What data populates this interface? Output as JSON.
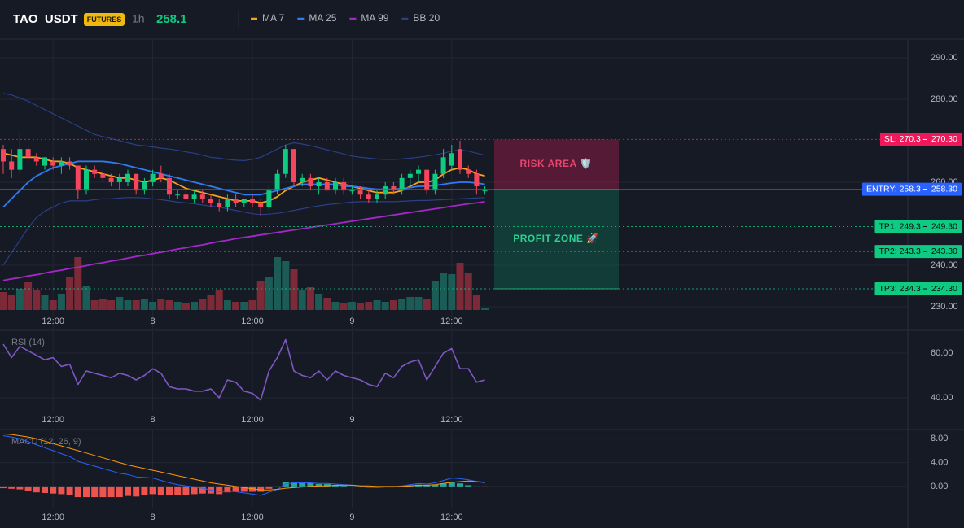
{
  "chart_data": [
    {
      "type": "candlestick",
      "title": "TAO_USDT",
      "market": "FUTURES",
      "interval": "1h",
      "last_price": 258.1,
      "categories": [
        null,
        null,
        null,
        null,
        null,
        null,
        "12:00",
        null,
        null,
        null,
        null,
        null,
        null,
        null,
        null,
        null,
        null,
        null,
        "8",
        null,
        null,
        null,
        null,
        null,
        null,
        null,
        null,
        null,
        null,
        null,
        "12:00",
        null,
        null,
        null,
        null,
        null,
        null,
        null,
        null,
        null,
        null,
        null,
        "9",
        null,
        null,
        null,
        null,
        null,
        null,
        null,
        null,
        null,
        null,
        null,
        "12:00",
        null,
        null,
        null,
        null
      ],
      "open": [
        268,
        265,
        263,
        268,
        266,
        264,
        265,
        264,
        265,
        264,
        258,
        263,
        262,
        261,
        260,
        260,
        262,
        258,
        260,
        262,
        261,
        257,
        257,
        256,
        257,
        256,
        255,
        254,
        256,
        255,
        256,
        255,
        254,
        258,
        262,
        268,
        260,
        261,
        259,
        260,
        258,
        260,
        258,
        258,
        257,
        256,
        257,
        259,
        258,
        261,
        262,
        263,
        258,
        262,
        264,
        268,
        263,
        262,
        258
      ],
      "high": [
        269,
        268,
        272,
        269,
        267,
        266,
        266,
        266,
        266,
        264,
        264,
        264,
        263,
        262,
        262,
        263,
        262,
        261,
        263,
        264,
        262,
        258,
        258,
        258,
        258,
        257,
        256,
        257,
        257,
        256,
        257,
        256,
        259,
        263,
        269,
        268,
        262,
        262,
        261,
        261,
        261,
        261,
        259,
        259,
        258,
        258,
        260,
        260,
        262,
        263,
        264,
        263,
        263,
        268,
        269,
        270,
        264,
        263,
        259
      ],
      "low": [
        262,
        261,
        262,
        265,
        264,
        263,
        263,
        262,
        263,
        256,
        257,
        261,
        260,
        259,
        258,
        259,
        257,
        257,
        259,
        260,
        256,
        256,
        256,
        255,
        255,
        254,
        253,
        253,
        254,
        254,
        254,
        252,
        253,
        257,
        261,
        259,
        259,
        258,
        257,
        258,
        257,
        257,
        257,
        256,
        255,
        255,
        256,
        257,
        257,
        259,
        260,
        257,
        257,
        261,
        263,
        262,
        261,
        257,
        257
      ],
      "close": [
        265,
        263,
        268,
        266,
        265,
        266,
        264,
        265,
        264,
        258,
        263,
        262,
        261,
        260,
        261,
        262,
        258,
        260,
        262,
        261,
        257,
        257,
        256,
        257,
        256,
        255,
        254,
        256,
        255,
        256,
        255,
        254,
        258,
        262,
        268,
        260,
        261,
        259,
        260,
        258,
        260,
        258,
        258,
        257,
        256,
        257,
        259,
        258,
        261,
        262,
        263,
        258,
        262,
        266,
        267,
        263,
        262,
        259,
        258
      ],
      "volume": [
        22,
        18,
        26,
        34,
        24,
        18,
        12,
        20,
        40,
        65,
        30,
        12,
        14,
        12,
        16,
        12,
        12,
        14,
        10,
        14,
        12,
        10,
        8,
        10,
        14,
        18,
        24,
        12,
        10,
        10,
        12,
        35,
        40,
        65,
        60,
        50,
        25,
        28,
        20,
        15,
        10,
        8,
        10,
        8,
        10,
        12,
        10,
        12,
        14,
        16,
        16,
        14,
        36,
        45,
        44,
        58,
        45,
        18,
        3
      ],
      "up_color": "#0ecb81",
      "down_color": "#f6465d",
      "volume_up_color": "#1c5c56",
      "volume_down_color": "#7c2a38",
      "series": [
        {
          "name": "MA 7",
          "color": "#f7a21b",
          "values": [
            267,
            266.5,
            266,
            266,
            266,
            265.5,
            265,
            265,
            264.5,
            263.5,
            263,
            262.5,
            262,
            261.5,
            261,
            261,
            260.5,
            260,
            260.5,
            261,
            260.5,
            259.5,
            258.5,
            258,
            257.5,
            257,
            256.5,
            256,
            255.5,
            255.5,
            255.5,
            255,
            255.5,
            256.5,
            258,
            259,
            260,
            260.5,
            261,
            260.5,
            260,
            259.5,
            259,
            258.5,
            258,
            257.5,
            257.5,
            257.5,
            258,
            259,
            260,
            260,
            260.5,
            262,
            263,
            263.5,
            263,
            262,
            261.5
          ]
        },
        {
          "name": "MA 25",
          "color": "#2f7bf5",
          "values": [
            254,
            256,
            258,
            260,
            261.5,
            262.5,
            263.5,
            264,
            264.5,
            265,
            265,
            265,
            265,
            264.8,
            264.5,
            264,
            263.5,
            263,
            262.5,
            262,
            261.5,
            261,
            260.5,
            260,
            259.5,
            259,
            258.5,
            258,
            257.5,
            257,
            257,
            257,
            257.5,
            258,
            258.5,
            259,
            259.5,
            259.5,
            259.5,
            259.5,
            259.5,
            259,
            259,
            258.8,
            258.5,
            258.3,
            258.3,
            258.3,
            258.5,
            258.7,
            259,
            259,
            259.2,
            259.5,
            259.8,
            260,
            260,
            259.8,
            259.5
          ]
        },
        {
          "name": "MA 99",
          "color": "#a229c5",
          "values": [
            236.3,
            236.7,
            237,
            237.4,
            237.7,
            238.1,
            238.5,
            238.8,
            239.2,
            239.5,
            239.9,
            240.3,
            240.6,
            241,
            241.3,
            241.7,
            242.1,
            242.4,
            242.8,
            243.1,
            243.5,
            243.9,
            244.2,
            244.6,
            244.9,
            245.3,
            245.7,
            246,
            246.4,
            246.7,
            247,
            247.3,
            247.6,
            247.9,
            248.2,
            248.5,
            248.8,
            249.1,
            249.4,
            249.7,
            250,
            250.3,
            250.6,
            250.9,
            251.2,
            251.5,
            251.8,
            252.1,
            252.4,
            252.7,
            253,
            253.3,
            253.6,
            253.9,
            254.2,
            254.5,
            254.8,
            255,
            255.3
          ]
        },
        {
          "name": "BB 20",
          "color": "#2b3f86",
          "upper": [
            281.4,
            281,
            280.3,
            279.5,
            278.5,
            277.5,
            276.5,
            275.5,
            274.5,
            273.5,
            272.5,
            271.5,
            271,
            270.5,
            270,
            269.5,
            269,
            268.8,
            268.5,
            268.2,
            268,
            267.7,
            267.3,
            267,
            266.5,
            266,
            265.8,
            265.5,
            265.3,
            265.2,
            265.5,
            266,
            267,
            268,
            269,
            269.5,
            269.2,
            268.8,
            268.3,
            267.8,
            267.3,
            266.8,
            266.3,
            266,
            265.8,
            265.6,
            265.5,
            265.5,
            265.6,
            265.8,
            266,
            266.3,
            266.6,
            267,
            267.5,
            267.8,
            267.5,
            267,
            266.5
          ],
          "lower": [
            240,
            243,
            246,
            249,
            251.5,
            253,
            254,
            255,
            255.5,
            255.5,
            255.5,
            255.8,
            256,
            256,
            256.2,
            256.3,
            256.3,
            256.2,
            256,
            255.8,
            255.5,
            255.2,
            255,
            254.8,
            254.5,
            254.2,
            254,
            253.6,
            253.2,
            252.8,
            252.4,
            252.2,
            252.3,
            252.5,
            252.8,
            253.2,
            253.6,
            254,
            254.3,
            254.6,
            254.8,
            255,
            255.2,
            255.3,
            255.3,
            255.3,
            255.3,
            255.3,
            255.4,
            255.5,
            255.6,
            255.6,
            255.7,
            255.8,
            255.9,
            256,
            256.1,
            256.2,
            256.3
          ]
        }
      ],
      "levels": [
        {
          "label": "SL: 270.3",
          "value": 270.3,
          "axis_label": "270.30",
          "color": "#f0185a",
          "text_color": "#ffffff",
          "line_style": "dotted"
        },
        {
          "label": "ENTRY: 258.3",
          "value": 258.3,
          "axis_label": "258.30",
          "color": "#2962ff",
          "text_color": "#ffffff",
          "line_style": "solid"
        },
        {
          "label": "TP1: 249.3",
          "value": 249.3,
          "axis_label": "249.30",
          "color": "#0ecb81",
          "text_color": "#0b0e14",
          "line_style": "dotted"
        },
        {
          "label": "TP2: 243.3",
          "value": 243.3,
          "axis_label": "243.30",
          "color": "#0ecb81",
          "text_color": "#0b0e14",
          "line_style": "dotted"
        },
        {
          "label": "TP3: 234.3",
          "value": 234.3,
          "axis_label": "234.30",
          "color": "#0ecb81",
          "text_color": "#0b0e14",
          "line_style": "dotted"
        }
      ],
      "zones": [
        {
          "label": "RISK AREA 🛡️",
          "top": 270.3,
          "bottom": 258.3,
          "color": "#8b1e46",
          "text_color": "#e8456e"
        },
        {
          "label": "PROFIT ZONE 🚀",
          "top": 258.3,
          "bottom": 234.3,
          "color": "#0f5a47",
          "text_color": "#2ed192"
        }
      ],
      "ylim": [
        224.5,
        294.5
      ],
      "yticks": [
        {
          "value": 290,
          "label": "290.00"
        },
        {
          "value": 280,
          "label": "280.00"
        },
        {
          "value": 260,
          "label": "260.00"
        },
        {
          "value": 240,
          "label": "240.00"
        },
        {
          "value": 230,
          "label": "230.00"
        }
      ],
      "grid": true
    },
    {
      "type": "line",
      "title": "RSI (14)",
      "categories": [
        null,
        null,
        null,
        null,
        null,
        null,
        "12:00",
        null,
        null,
        null,
        null,
        null,
        null,
        null,
        null,
        null,
        null,
        null,
        "8",
        null,
        null,
        null,
        null,
        null,
        null,
        null,
        null,
        null,
        null,
        null,
        "12:00",
        null,
        null,
        null,
        null,
        null,
        null,
        null,
        null,
        null,
        null,
        null,
        "9",
        null,
        null,
        null,
        null,
        null,
        null,
        null,
        null,
        null,
        null,
        null,
        "12:00",
        null,
        null,
        null,
        null
      ],
      "values": [
        64,
        58,
        63,
        61,
        59,
        57,
        58,
        54,
        55,
        46,
        52,
        51,
        50,
        49,
        51,
        50,
        48,
        50,
        53,
        51,
        45,
        44,
        44,
        43,
        43,
        44,
        40,
        48,
        47,
        43,
        42,
        39,
        52,
        58,
        66,
        52,
        50,
        49,
        52,
        48,
        52,
        50,
        49,
        48,
        46,
        45,
        51,
        49,
        54,
        56,
        57,
        48,
        54,
        60,
        62,
        53,
        53,
        47,
        48
      ],
      "color": "#7e57c2",
      "ylim": [
        34.2,
        69.8
      ],
      "yticks": [
        {
          "value": 60,
          "label": "60.00"
        },
        {
          "value": 40,
          "label": "40.00"
        }
      ],
      "grid": true
    },
    {
      "type": "macd",
      "title": "MACD (12, 26, 9)",
      "categories": [
        null,
        null,
        null,
        null,
        null,
        null,
        "12:00",
        null,
        null,
        null,
        null,
        null,
        null,
        null,
        null,
        null,
        null,
        null,
        "8",
        null,
        null,
        null,
        null,
        null,
        null,
        null,
        null,
        null,
        null,
        null,
        "12:00",
        null,
        null,
        null,
        null,
        null,
        null,
        null,
        null,
        null,
        null,
        null,
        "9",
        null,
        null,
        null,
        null,
        null,
        null,
        null,
        null,
        null,
        null,
        null,
        "12:00",
        null,
        null,
        null,
        null
      ],
      "histogram": [
        -0.3,
        -0.4,
        -0.5,
        -0.8,
        -1.0,
        -1.1,
        -1.2,
        -1.3,
        -1.4,
        -1.8,
        -1.8,
        -1.8,
        -1.8,
        -1.8,
        -1.8,
        -1.6,
        -1.7,
        -1.5,
        -1.3,
        -1.4,
        -1.5,
        -1.5,
        -1.4,
        -1.3,
        -1.2,
        -1.2,
        -1.3,
        -1.0,
        -0.9,
        -0.9,
        -0.9,
        -0.9,
        -0.4,
        0.0,
        0.7,
        0.8,
        0.7,
        0.6,
        0.4,
        0.4,
        0.2,
        0.1,
        0.0,
        0.0,
        -0.2,
        -0.2,
        -0.1,
        -0.1,
        0.1,
        0.2,
        0.3,
        0.2,
        0.3,
        0.5,
        0.7,
        0.5,
        0.2,
        0.0,
        -0.1
      ],
      "macd": [
        8.5,
        8.3,
        8.0,
        7.5,
        7.0,
        6.5,
        6.0,
        5.5,
        5.0,
        4.2,
        3.8,
        3.4,
        3.0,
        2.6,
        2.2,
        2.0,
        1.6,
        1.5,
        1.4,
        1.0,
        0.6,
        0.3,
        0.1,
        -0.1,
        -0.3,
        -0.6,
        -0.9,
        -0.8,
        -0.9,
        -1.1,
        -1.3,
        -1.5,
        -1.0,
        -0.5,
        0.4,
        0.6,
        0.6,
        0.6,
        0.5,
        0.5,
        0.4,
        0.3,
        0.2,
        0.1,
        -0.1,
        -0.2,
        -0.1,
        -0.1,
        0.1,
        0.3,
        0.5,
        0.4,
        0.6,
        1.0,
        1.4,
        1.3,
        1.1,
        0.8,
        0.6
      ],
      "signal": [
        8.8,
        8.7,
        8.5,
        8.3,
        8.0,
        7.6,
        7.2,
        6.8,
        6.4,
        6.0,
        5.6,
        5.2,
        4.8,
        4.4,
        4.0,
        3.6,
        3.3,
        3.0,
        2.7,
        2.4,
        2.1,
        1.8,
        1.5,
        1.2,
        0.9,
        0.6,
        0.4,
        0.2,
        0.0,
        -0.2,
        -0.4,
        -0.6,
        -0.6,
        -0.5,
        -0.3,
        -0.2,
        -0.1,
        0.0,
        0.1,
        0.1,
        0.2,
        0.2,
        0.2,
        0.1,
        0.1,
        0.0,
        0.0,
        0.0,
        0.0,
        0.1,
        0.2,
        0.2,
        0.3,
        0.5,
        0.7,
        0.8,
        0.9,
        0.8,
        0.7
      ],
      "macd_color": "#2962ff",
      "signal_color": "#ff9800",
      "up_color": "#26a69a",
      "down_color": "#ef5350",
      "ylim": [
        -3.7,
        9.4
      ],
      "yticks": [
        {
          "value": 8,
          "label": "8.00"
        },
        {
          "value": 4,
          "label": "4.00"
        },
        {
          "value": 0,
          "label": "0.00"
        }
      ],
      "grid": true
    }
  ]
}
